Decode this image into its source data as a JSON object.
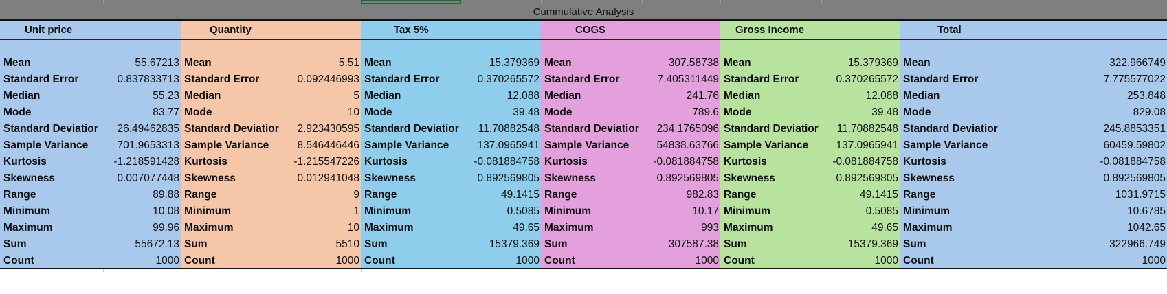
{
  "sheet": {
    "title": "Cummulative Analysis"
  },
  "colors": {
    "unit_price": "#a9c9ec",
    "quantity": "#f6c6a9",
    "tax": "#8ecdec",
    "cogs": "#e3a0dc",
    "gross_income": "#b8e39f",
    "total": "#a9c9ec"
  },
  "stat_labels": {
    "mean": "Mean",
    "standard_error": "Standard Error",
    "median": "Median",
    "mode": "Mode",
    "standard_deviation": "Standard Deviatior",
    "sample_variance": "Sample Variance",
    "kurtosis": "Kurtosis",
    "skewness": "Skewness",
    "range": "Range",
    "minimum": "Minimum",
    "maximum": "Maximum",
    "sum": "Sum",
    "count": "Count"
  },
  "blocks": [
    {
      "header": "Unit price",
      "values": {
        "mean": "55.67213",
        "standard_error": "0.837833713",
        "median": "55.23",
        "mode": "83.77",
        "standard_deviation": "26.49462835",
        "sample_variance": "701.9653313",
        "kurtosis": "-1.218591428",
        "skewness": "0.007077448",
        "range": "89.88",
        "minimum": "10.08",
        "maximum": "99.96",
        "sum": "55672.13",
        "count": "1000"
      }
    },
    {
      "header": "Quantity",
      "values": {
        "mean": "5.51",
        "standard_error": "0.092446993",
        "median": "5",
        "mode": "10",
        "standard_deviation": "2.923430595",
        "sample_variance": "8.546446446",
        "kurtosis": "-1.215547226",
        "skewness": "0.012941048",
        "range": "9",
        "minimum": "1",
        "maximum": "10",
        "sum": "5510",
        "count": "1000"
      }
    },
    {
      "header": "Tax 5%",
      "values": {
        "mean": "15.379369",
        "standard_error": "0.370265572",
        "median": "12.088",
        "mode": "39.48",
        "standard_deviation": "11.70882548",
        "sample_variance": "137.0965941",
        "kurtosis": "-0.081884758",
        "skewness": "0.892569805",
        "range": "49.1415",
        "minimum": "0.5085",
        "maximum": "49.65",
        "sum": "15379.369",
        "count": "1000"
      }
    },
    {
      "header": "COGS",
      "values": {
        "mean": "307.58738",
        "standard_error": "7.405311449",
        "median": "241.76",
        "mode": "789.6",
        "standard_deviation": "234.1765096",
        "sample_variance": "54838.63766",
        "kurtosis": "-0.081884758",
        "skewness": "0.892569805",
        "range": "982.83",
        "minimum": "10.17",
        "maximum": "993",
        "sum": "307587.38",
        "count": "1000"
      }
    },
    {
      "header": "Gross Income",
      "values": {
        "mean": "15.379369",
        "standard_error": "0.370265572",
        "median": "12.088",
        "mode": "39.48",
        "standard_deviation": "11.70882548",
        "sample_variance": "137.0965941",
        "kurtosis": "-0.081884758",
        "skewness": "0.892569805",
        "range": "49.1415",
        "minimum": "0.5085",
        "maximum": "49.65",
        "sum": "15379.369",
        "count": "1000"
      }
    },
    {
      "header": "Total",
      "values": {
        "mean": "322.966749",
        "standard_error": "7.775577022",
        "median": "253.848",
        "mode": "829.08",
        "standard_deviation": "245.8853351",
        "sample_variance": "60459.59802",
        "kurtosis": "-0.081884758",
        "skewness": "0.892569805",
        "range": "1031.9715",
        "minimum": "10.6785",
        "maximum": "1042.65",
        "sum": "322966.749",
        "count": "1000"
      }
    }
  ]
}
